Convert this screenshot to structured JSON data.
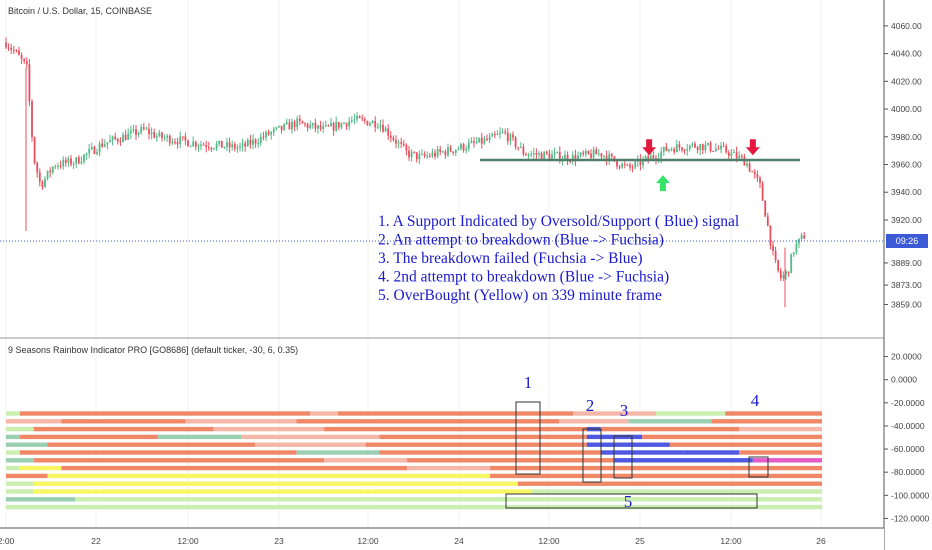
{
  "header": {
    "symbol_title": "Bitcoin / U.S. Dollar, 15, COINBASE",
    "indicator_title": "9 Seasons Rainbow Indicator PRO [GO8686] (default ticker, -30, 6, 0.35)"
  },
  "price_axis": {
    "ticks": [
      "4060.00",
      "4040.00",
      "4020.00",
      "4000.00",
      "3980.00",
      "3960.00",
      "3940.00",
      "3920.00",
      "3889.00",
      "3873.00",
      "3859.00"
    ],
    "current_price_label": "09:26"
  },
  "indicator_axis": {
    "ticks": [
      "20.0000",
      "0.0000",
      "-20.0000",
      "-40.0000",
      "-60.0000",
      "-80.0000",
      "-100.0000",
      "-120.0000"
    ]
  },
  "time_axis": {
    "ticks": [
      "2:00",
      "22",
      "12:00",
      "23",
      "12:00",
      "24",
      "12:00",
      "25",
      "12:00",
      "26"
    ]
  },
  "annotations": {
    "notes": [
      "1. A Support Indicated by Oversold/Support ( Blue) signal",
      "2. An attempt to breakdown (Blue -> Fuchsia)",
      "3. The breakdown failed (Fuchsia -> Blue)",
      "4. 2nd attempt to breakdown (Blue -> Fuchsia)",
      "5. OverBought (Yellow) on 339 minute frame"
    ],
    "box_labels": [
      "1",
      "2",
      "3",
      "4",
      "5"
    ]
  },
  "colors": {
    "up_candle": "#53b987",
    "down_candle": "#eb4d5c",
    "support_line": "#4f7f6a",
    "annotation_text": "#1a1acc",
    "price_line": "#3c5ad6",
    "arrow_down": "#e5193f",
    "arrow_up": "#38e36b",
    "band_salmon": "#f08868",
    "band_pink": "#f5b8a8",
    "band_teal": "#9bcfb2",
    "band_lightgreen": "#c9f0b0",
    "band_yellow": "#f7f764",
    "band_blue": "#4f58e0",
    "band_fuchsia": "#e65ac8"
  },
  "chart_data": [
    {
      "type": "candlestick",
      "title": "Bitcoin / U.S. Dollar, 15, COINBASE",
      "x_range": [
        "2019-03-21 02:00",
        "2019-03-26 00:00"
      ],
      "ylim": [
        3850,
        4070
      ],
      "support_level": 3961,
      "current_price": 3909,
      "close_path": [
        {
          "x": "2019-03-21 02:00",
          "close": 4048
        },
        {
          "x": "2019-03-21 03:30",
          "close": 4040
        },
        {
          "x": "2019-03-21 05:00",
          "close": 4030
        },
        {
          "x": "2019-03-21 06:00",
          "close": 3965
        },
        {
          "x": "2019-03-21 07:00",
          "close": 3945
        },
        {
          "x": "2019-03-21 09:00",
          "close": 3960
        },
        {
          "x": "2019-03-21 12:00",
          "close": 3962
        },
        {
          "x": "2019-03-21 16:00",
          "close": 3975
        },
        {
          "x": "2019-03-21 22:00",
          "close": 3985
        },
        {
          "x": "2019-03-22 00:00",
          "close": 3980
        },
        {
          "x": "2019-03-22 06:00",
          "close": 3975
        },
        {
          "x": "2019-03-22 12:00",
          "close": 3972
        },
        {
          "x": "2019-03-22 16:00",
          "close": 3982
        },
        {
          "x": "2019-03-22 20:00",
          "close": 3990
        },
        {
          "x": "2019-03-23 00:00",
          "close": 3985
        },
        {
          "x": "2019-03-23 04:00",
          "close": 3992
        },
        {
          "x": "2019-03-23 08:00",
          "close": 3990
        },
        {
          "x": "2019-03-23 12:00",
          "close": 3968
        },
        {
          "x": "2019-03-23 14:00",
          "close": 3965
        },
        {
          "x": "2019-03-23 18:00",
          "close": 3970
        },
        {
          "x": "2019-03-24 00:00",
          "close": 3978
        },
        {
          "x": "2019-03-24 02:00",
          "close": 3983
        },
        {
          "x": "2019-03-24 05:00",
          "close": 3968
        },
        {
          "x": "2019-03-24 12:00",
          "close": 3965
        },
        {
          "x": "2019-03-24 16:00",
          "close": 3968
        },
        {
          "x": "2019-03-24 20:00",
          "close": 3957
        },
        {
          "x": "2019-03-24 22:00",
          "close": 3962
        },
        {
          "x": "2019-03-25 02:00",
          "close": 3972
        },
        {
          "x": "2019-03-25 06:00",
          "close": 3974
        },
        {
          "x": "2019-03-25 10:00",
          "close": 3970
        },
        {
          "x": "2019-03-25 13:00",
          "close": 3962
        },
        {
          "x": "2019-03-25 15:00",
          "close": 3945
        },
        {
          "x": "2019-03-25 16:00",
          "close": 3920
        },
        {
          "x": "2019-03-25 17:00",
          "close": 3892
        },
        {
          "x": "2019-03-25 18:00",
          "close": 3878
        },
        {
          "x": "2019-03-25 19:00",
          "close": 3882
        },
        {
          "x": "2019-03-25 20:00",
          "close": 3900
        },
        {
          "x": "2019-03-25 21:30",
          "close": 3909
        }
      ],
      "markers": [
        {
          "kind": "down-arrow",
          "x": "2019-03-24 23:00",
          "price": 3971
        },
        {
          "kind": "up-arrow",
          "x": "2019-03-25 01:00",
          "price": 3948
        },
        {
          "kind": "down-arrow",
          "x": "2019-03-25 14:00",
          "price": 3971
        }
      ]
    },
    {
      "type": "heatmap",
      "title": "9 Seasons Rainbow Indicator PRO [GO8686] (default ticker, -30, 6, 0.35)",
      "ylim": [
        -130,
        30
      ],
      "bands": [
        {
          "row": 1,
          "segments": [
            [
              "2019-03-21 02:00",
              "band_lightgreen"
            ],
            [
              "2019-03-21 04:00",
              "band_salmon"
            ],
            [
              "2019-03-22 22:00",
              "band_pink"
            ],
            [
              "2019-03-23 02:00",
              "band_salmon"
            ],
            [
              "2019-03-24 12:00",
              "band_pink"
            ],
            [
              "2019-03-25 00:00",
              "band_lightgreen"
            ],
            [
              "2019-03-25 10:00",
              "band_salmon"
            ]
          ]
        },
        {
          "row": 2,
          "segments": [
            [
              "2019-03-21 02:00",
              "band_pink"
            ],
            [
              "2019-03-21 10:00",
              "band_salmon"
            ],
            [
              "2019-03-22 04:00",
              "band_pink"
            ],
            [
              "2019-03-22 20:00",
              "band_salmon"
            ],
            [
              "2019-03-24 10:00",
              "band_pink"
            ],
            [
              "2019-03-24 20:00",
              "band_teal"
            ],
            [
              "2019-03-25 08:00",
              "band_salmon"
            ]
          ]
        },
        {
          "row": 3,
          "segments": [
            [
              "2019-03-21 02:00",
              "band_lightgreen"
            ],
            [
              "2019-03-21 06:00",
              "band_salmon"
            ],
            [
              "2019-03-22 08:00",
              "band_pink"
            ],
            [
              "2019-03-23 00:00",
              "band_salmon"
            ],
            [
              "2019-03-24 14:00",
              "band_blue"
            ],
            [
              "2019-03-24 16:00",
              "band_salmon"
            ],
            [
              "2019-03-25 12:00",
              "band_pink"
            ]
          ]
        },
        {
          "row": 4,
          "segments": [
            [
              "2019-03-21 02:00",
              "band_teal"
            ],
            [
              "2019-03-21 04:00",
              "band_salmon"
            ],
            [
              "2019-03-22 00:00",
              "band_teal"
            ],
            [
              "2019-03-22 12:00",
              "band_pink"
            ],
            [
              "2019-03-23 08:00",
              "band_salmon"
            ],
            [
              "2019-03-24 14:00",
              "band_blue"
            ],
            [
              "2019-03-24 22:00",
              "band_salmon"
            ]
          ]
        },
        {
          "row": 5,
          "segments": [
            [
              "2019-03-21 02:00",
              "band_teal"
            ],
            [
              "2019-03-21 08:00",
              "band_salmon"
            ],
            [
              "2019-03-22 14:00",
              "band_pink"
            ],
            [
              "2019-03-23 06:00",
              "band_salmon"
            ],
            [
              "2019-03-24 14:00",
              "band_blue"
            ],
            [
              "2019-03-25 02:00",
              "band_salmon"
            ]
          ]
        },
        {
          "row": 6,
          "segments": [
            [
              "2019-03-21 02:00",
              "band_lightgreen"
            ],
            [
              "2019-03-21 04:00",
              "band_salmon"
            ],
            [
              "2019-03-22 20:00",
              "band_teal"
            ],
            [
              "2019-03-23 08:00",
              "band_salmon"
            ],
            [
              "2019-03-24 16:00",
              "band_blue"
            ],
            [
              "2019-03-25 04:00",
              "band_blue"
            ],
            [
              "2019-03-25 12:00",
              "band_salmon"
            ]
          ]
        },
        {
          "row": 7,
          "segments": [
            [
              "2019-03-21 02:00",
              "band_teal"
            ],
            [
              "2019-03-21 06:00",
              "band_salmon"
            ],
            [
              "2019-03-23 00:00",
              "band_pink"
            ],
            [
              "2019-03-23 12:00",
              "band_salmon"
            ],
            [
              "2019-03-24 18:00",
              "band_blue"
            ],
            [
              "2019-03-25 14:00",
              "band_fuchsia"
            ]
          ]
        },
        {
          "row": 8,
          "segments": [
            [
              "2019-03-21 02:00",
              "band_lightgreen"
            ],
            [
              "2019-03-21 04:00",
              "band_yellow"
            ],
            [
              "2019-03-21 10:00",
              "band_salmon"
            ],
            [
              "2019-03-23 12:00",
              "band_pink"
            ],
            [
              "2019-03-24 00:00",
              "band_salmon"
            ]
          ]
        },
        {
          "row": 9,
          "segments": [
            [
              "2019-03-21 02:00",
              "band_salmon"
            ],
            [
              "2019-03-21 08:00",
              "band_yellow"
            ],
            [
              "2019-03-24 00:00",
              "band_salmon"
            ]
          ]
        },
        {
          "row": 10,
          "segments": [
            [
              "2019-03-21 02:00",
              "band_lightgreen"
            ],
            [
              "2019-03-21 06:00",
              "band_yellow"
            ],
            [
              "2019-03-24 04:00",
              "band_salmon"
            ]
          ]
        },
        {
          "row": 11,
          "segments": [
            [
              "2019-03-21 02:00",
              "band_lightgreen"
            ],
            [
              "2019-03-21 06:00",
              "band_yellow"
            ],
            [
              "2019-03-24 06:00",
              "band_lightgreen"
            ]
          ]
        },
        {
          "row": 12,
          "segments": [
            [
              "2019-03-21 02:00",
              "band_teal"
            ],
            [
              "2019-03-21 12:00",
              "band_lightgreen"
            ]
          ]
        },
        {
          "row": 13,
          "segments": [
            [
              "2019-03-21 02:00",
              "band_lightgreen"
            ]
          ]
        }
      ]
    }
  ]
}
